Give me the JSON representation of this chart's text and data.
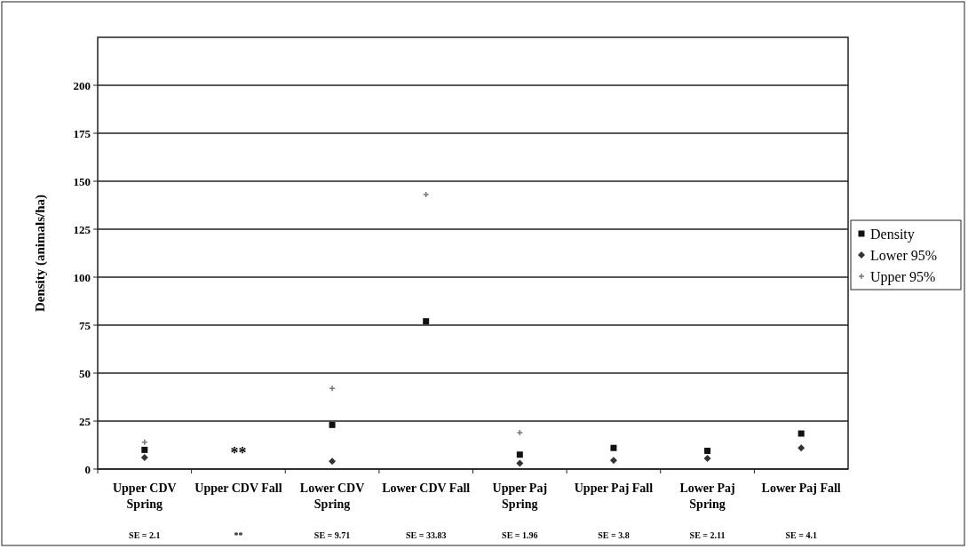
{
  "chart_data": {
    "type": "scatter",
    "ylabel": "Density (animals/ha)",
    "categories": [
      "Upper CDV Spring",
      "Upper CDV Fall",
      "Lower CDV Spring",
      "Lower CDV Fall",
      "Upper Paj Spring",
      "Upper Paj Fall",
      "Lower Paj Spring",
      "Lower Paj Fall"
    ],
    "series": [
      {
        "name": "Density",
        "color": "#111111",
        "marker": "square",
        "values": [
          10,
          null,
          23,
          77,
          7.5,
          11,
          9.5,
          18.5
        ]
      },
      {
        "name": "Lower 95%",
        "color": "#333333",
        "marker": "diamond",
        "values": [
          6,
          null,
          4,
          null,
          3,
          4.5,
          5.5,
          11
        ]
      },
      {
        "name": "Upper 95%",
        "color": "#777777",
        "marker": "cross",
        "values": [
          14,
          null,
          42,
          143,
          19,
          null,
          null,
          null
        ]
      }
    ],
    "ylim": [
      0,
      225
    ],
    "yticks": [
      0,
      25,
      50,
      75,
      100,
      125,
      150,
      175,
      200
    ],
    "grid": "y",
    "legend": "right",
    "annotations": [
      "SE = 2.1",
      "**",
      "SE = 9.71",
      "SE = 33.83",
      "SE = 1.96",
      "SE = 3.8",
      "SE = 2.11",
      "SE = 4.1",
      "**"
    ]
  }
}
